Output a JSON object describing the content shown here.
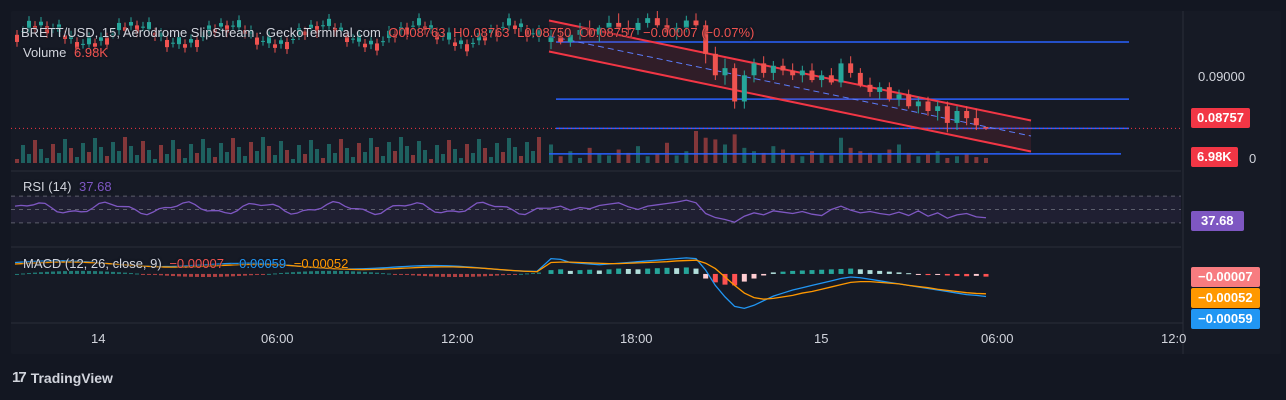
{
  "legend": {
    "symbol": "BRETT/USD, 15, Aerodrome SlipStream · GeckoTerminal.com",
    "open": "O0.08763",
    "high": "H0.08763",
    "low": "L0.08750",
    "close": "C0.08757",
    "change": "−0.00007 (−0.07%)",
    "volume_label": "Volume",
    "volume_value": "6.98K"
  },
  "rsi_legend": {
    "label": "RSI (14)",
    "value": "37.68"
  },
  "macd_legend": {
    "label": "MACD (12, 26, close, 9)",
    "hist": "−0.00007",
    "macd": "−0.00059",
    "signal": "−0.00052"
  },
  "price_axis": {
    "tick": "0.09000",
    "last_price": "0.08757",
    "last_volume": "6.98K",
    "zero_tick": "0"
  },
  "rsi_axis": {
    "value": "37.68"
  },
  "macd_axis": {
    "hist": "−0.00007",
    "signal": "−0.00052",
    "macd": "−0.00059"
  },
  "time_axis": [
    "14",
    "06:00",
    "12:00",
    "18:00",
    "15",
    "06:00",
    "12:0"
  ],
  "brand": "TradingView",
  "colors": {
    "up": "#26a69a",
    "down": "#ef5350",
    "channel": "#f23645",
    "hline": "#2962ff",
    "rsi": "#7e57c2",
    "macd": "#2196f3",
    "signal": "#ff9800"
  },
  "chart_data": {
    "type": "candlestick",
    "ylim": [
      0.0862,
      0.0925
    ],
    "last_price": 0.08757,
    "horizontal_levels": [
      0.0912,
      0.0888,
      0.08757,
      0.0865
    ],
    "channel_upper": [
      [
        0.0921,
        0.0879
      ]
    ],
    "channel_lower": [
      [
        0.0908,
        0.0866
      ]
    ],
    "candles": [
      [
        0.0912,
        0.0917,
        0.0909,
        0.0914
      ],
      [
        0.0914,
        0.0918,
        0.0911,
        0.0912
      ],
      [
        0.0912,
        0.0916,
        0.091,
        0.0915
      ],
      [
        0.0915,
        0.092,
        0.0913,
        0.0917
      ],
      [
        0.0917,
        0.0921,
        0.0914,
        0.0915
      ],
      [
        0.0915,
        0.0919,
        0.0912,
        0.0918
      ],
      [
        0.0918,
        0.0923,
        0.0916,
        0.092
      ],
      [
        0.092,
        0.0924,
        0.0917,
        0.0918
      ],
      [
        0.0918,
        0.0921,
        0.0915,
        0.0917
      ],
      [
        0.0917,
        0.0922,
        0.0915,
        0.092
      ],
      [
        0.092,
        0.0924,
        0.0918,
        0.0922
      ],
      [
        0.0922,
        0.0925,
        0.0918,
        0.0919
      ],
      [
        0.0919,
        0.0922,
        0.0915,
        0.0916
      ],
      [
        0.0916,
        0.092,
        0.0913,
        0.0918
      ],
      [
        0.0918,
        0.0923,
        0.0916,
        0.0921
      ],
      [
        0.0921,
        0.0924,
        0.0918,
        0.0919
      ],
      [
        0.0919,
        0.0921,
        0.0903,
        0.0907
      ],
      [
        0.0907,
        0.091,
        0.0896,
        0.0898
      ],
      [
        0.0898,
        0.0905,
        0.0894,
        0.0901
      ],
      [
        0.0901,
        0.0903,
        0.0884,
        0.0887
      ],
      [
        0.0887,
        0.09,
        0.0884,
        0.0898
      ],
      [
        0.0898,
        0.0905,
        0.0895,
        0.0903
      ],
      [
        0.0903,
        0.0906,
        0.0897,
        0.0899
      ],
      [
        0.0899,
        0.0904,
        0.0896,
        0.0902
      ],
      [
        0.0902,
        0.0905,
        0.0898,
        0.09
      ],
      [
        0.09,
        0.0903,
        0.0896,
        0.0898
      ],
      [
        0.0898,
        0.0902,
        0.0895,
        0.09
      ],
      [
        0.09,
        0.0903,
        0.0895,
        0.0896
      ],
      [
        0.0896,
        0.09,
        0.0893,
        0.0898
      ],
      [
        0.0898,
        0.0901,
        0.0894,
        0.0895
      ],
      [
        0.0895,
        0.0905,
        0.0893,
        0.0903
      ],
      [
        0.0903,
        0.0906,
        0.0897,
        0.0899
      ],
      [
        0.0899,
        0.0901,
        0.0893,
        0.0894
      ],
      [
        0.0894,
        0.0897,
        0.0889,
        0.0891
      ],
      [
        0.0891,
        0.0895,
        0.0888,
        0.0893
      ],
      [
        0.0893,
        0.0895,
        0.0887,
        0.0888
      ],
      [
        0.0888,
        0.0892,
        0.0885,
        0.089
      ],
      [
        0.089,
        0.0892,
        0.0884,
        0.0885
      ],
      [
        0.0885,
        0.0889,
        0.0882,
        0.0887
      ],
      [
        0.0887,
        0.0889,
        0.0881,
        0.0883
      ],
      [
        0.0883,
        0.0887,
        0.0879,
        0.0885
      ],
      [
        0.0885,
        0.0887,
        0.0874,
        0.0878
      ],
      [
        0.0878,
        0.0885,
        0.0875,
        0.0883
      ],
      [
        0.0883,
        0.0885,
        0.0877,
        0.088
      ],
      [
        0.088,
        0.0884,
        0.0875,
        0.0877
      ],
      [
        0.08763,
        0.08763,
        0.0875,
        0.08757
      ]
    ],
    "volume": [
      22,
      8,
      14,
      6,
      18,
      10,
      9,
      16,
      12,
      20,
      8,
      11,
      24,
      9,
      14,
      38,
      30,
      28,
      22,
      34,
      18,
      14,
      12,
      20,
      16,
      10,
      8,
      14,
      12,
      9,
      30,
      18,
      14,
      12,
      10,
      16,
      22,
      12,
      8,
      10,
      14,
      6,
      8,
      10,
      7,
      6
    ],
    "rsi": {
      "ylim": [
        0,
        100
      ],
      "levels": [
        70,
        50,
        30
      ],
      "values": [
        52,
        55,
        49,
        53,
        51,
        56,
        58,
        60,
        54,
        50,
        55,
        57,
        59,
        61,
        64,
        60,
        44,
        38,
        35,
        31,
        40,
        45,
        42,
        48,
        46,
        44,
        47,
        43,
        41,
        50,
        55,
        49,
        45,
        47,
        44,
        42,
        46,
        41,
        48,
        40,
        45,
        37,
        42,
        44,
        39,
        37.68
      ]
    },
    "macd": {
      "hist": [
        0.0001,
        0.00012,
        8e-05,
        0.0001,
        0.00011,
        9e-05,
        0.00012,
        0.00014,
        0.00013,
        0.00012,
        0.00014,
        0.00015,
        0.00016,
        0.00015,
        0.00017,
        0.00014,
        -0.00012,
        -0.00022,
        -0.00028,
        -0.0003,
        -0.0002,
        -0.00012,
        -4e-05,
        4e-05,
        6e-05,
        8e-05,
        9e-05,
        0.0001,
        0.00011,
        0.00012,
        0.00013,
        0.00014,
        0.00012,
        0.0001,
        8e-05,
        6e-05,
        4e-05,
        2e-05,
        -1e-05,
        -3e-05,
        -2e-05,
        -4e-05,
        -5e-05,
        -6e-05,
        -5e-05,
        -7e-05
      ],
      "macd": [
        0.0004,
        0.00038,
        0.0003,
        0.00028,
        0.00026,
        0.00024,
        0.00026,
        0.00028,
        0.0003,
        0.00032,
        0.00034,
        0.00036,
        0.00038,
        0.0004,
        0.00042,
        0.0004,
        0.0001,
        -0.0003,
        -0.0006,
        -0.00085,
        -0.0009,
        -0.00082,
        -0.0007,
        -0.00058,
        -0.0005,
        -0.00042,
        -0.00036,
        -0.0003,
        -0.00024,
        -0.00018,
        -0.00012,
        -8e-05,
        -0.0001,
        -0.00014,
        -0.00018,
        -0.00022,
        -0.00026,
        -0.0003,
        -0.00034,
        -0.00038,
        -0.00042,
        -0.00046,
        -0.0005,
        -0.00054,
        -0.00056,
        -0.00059
      ],
      "signal": [
        0.0003,
        0.00031,
        0.00031,
        0.0003,
        0.00029,
        0.00028,
        0.00027,
        0.00027,
        0.00028,
        0.00029,
        0.0003,
        0.00031,
        0.00032,
        0.00034,
        0.00035,
        0.00036,
        0.00028,
        0.00014,
        -8e-05,
        -0.0003,
        -0.0005,
        -0.00062,
        -0.00066,
        -0.00064,
        -0.0006,
        -0.00056,
        -0.0005,
        -0.00046,
        -0.0004,
        -0.00034,
        -0.00028,
        -0.00022,
        -0.0002,
        -0.0002,
        -0.00022,
        -0.00024,
        -0.00026,
        -0.0003,
        -0.00033,
        -0.00036,
        -0.0004,
        -0.00043,
        -0.00046,
        -0.00049,
        -0.00051,
        -0.00052
      ],
      "ylim": [
        -0.0011,
        0.0006
      ]
    }
  }
}
